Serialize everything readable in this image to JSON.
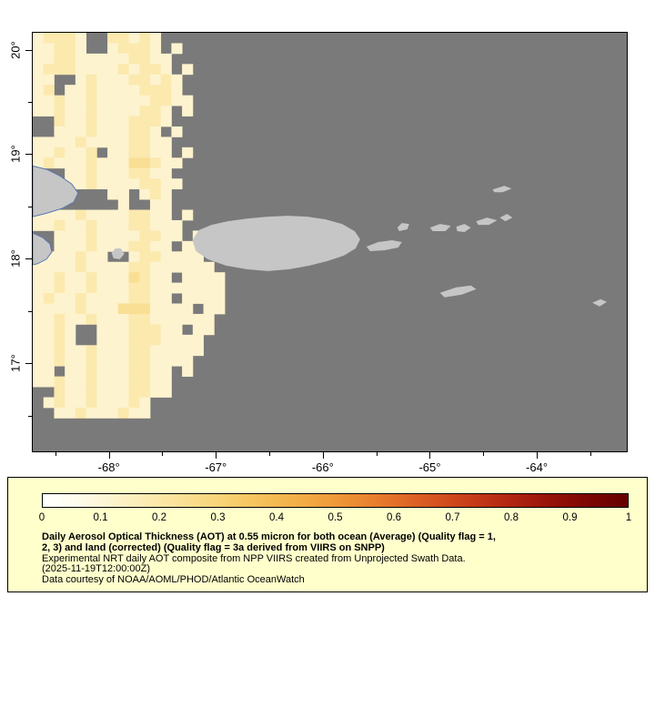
{
  "figure": {
    "bg_color": "#ffffff"
  },
  "map": {
    "bg_color": "#7a7a7a",
    "land_color": "#c6c6c6",
    "coast_accent": "#5b79b2",
    "border_color": "#000000"
  },
  "chart_data": {
    "type": "heatmap",
    "x_axis": {
      "ticks": [
        "-68°",
        "-67°",
        "-66°",
        "-65°",
        "-64°"
      ],
      "tick_values": [
        -68,
        -67,
        -66,
        -65,
        -64
      ],
      "minor_tick_values": [
        -68.5,
        -67.5,
        -66.5,
        -65.5,
        -64.5,
        -63.5
      ],
      "range": [
        -68.72,
        -63.15
      ]
    },
    "y_axis": {
      "ticks": [
        "20°",
        "19°",
        "18°",
        "17°"
      ],
      "tick_values": [
        20,
        19,
        18,
        17
      ],
      "minor_tick_values": [
        19.5,
        18.5,
        17.5,
        16.5
      ],
      "range": [
        16.15,
        20.17
      ]
    },
    "colorbar": {
      "ticks": [
        "0",
        "0.1",
        "0.2",
        "0.3",
        "0.4",
        "0.5",
        "0.6",
        "0.7",
        "0.8",
        "0.9",
        "1"
      ],
      "range": [
        0,
        1
      ],
      "gradient_stops": [
        [
          0,
          "#ffffff"
        ],
        [
          0.05,
          "#fffdf0"
        ],
        [
          0.1,
          "#fdf6d7"
        ],
        [
          0.15,
          "#fcefbf"
        ],
        [
          0.2,
          "#fbe7a7"
        ],
        [
          0.25,
          "#f9de8f"
        ],
        [
          0.3,
          "#f8d478"
        ],
        [
          0.35,
          "#f6c763"
        ],
        [
          0.4,
          "#f4b951"
        ],
        [
          0.45,
          "#f2aa44"
        ],
        [
          0.5,
          "#ef9939"
        ],
        [
          0.55,
          "#ea8530"
        ],
        [
          0.6,
          "#e37029"
        ],
        [
          0.65,
          "#da5b23"
        ],
        [
          0.7,
          "#cf481d"
        ],
        [
          0.75,
          "#c13617"
        ],
        [
          0.8,
          "#b12511"
        ],
        [
          0.85,
          "#9e170b"
        ],
        [
          0.9,
          "#890c05"
        ],
        [
          0.95,
          "#750402"
        ],
        [
          1,
          "#650000"
        ]
      ]
    },
    "aot_grid": {
      "cell_size_deg": 0.1,
      "value_map": {
        "1": 0.02,
        "2": 0.06,
        "3": 0.1,
        "4": 0.15
      },
      "color_map": {
        "1": "#fefbe8",
        "2": "#fdf3cf",
        "3": "#fbe9ae",
        "4": "#f9df94"
      },
      "no_data": ".",
      "rows": [
        "23332..33232.......",
        "22332..23332.2.....",
        "2233222223322......",
        "2333222232332.2....",
        "22..2322233232.....",
        "23.22322223332.....",
        "223223222223322....",
        "2232232222332.2....",
        "..32232223332......",
        "..2223222332.2.....",
        "2222322223322......",
        "223223.223322.2....",
        "23222322244322.....",
        "...2232223322......",
        "...22322223322.....",
        ".......22.232......",
        "........2..22......",
        "2222322223322.2....",
        "22322322233222.....",
        "..222322223322.2...",
        "..22232223322.22...",
        "2222322..2332222...",
        "22223222233222222..",
        "2232232224322.2222.",
        "223223222332222222.",
        "2322322223322.2222.",
        "222232224442222.22.",
        "22322322233222222..",
        "2232..22233322.22..",
        "2232..2223332222...",
        "2232232223322222...",
        "223223222332222....",
        "22.2232223322.2....",
        "2232232223322......",
        "..32232223322......",
        ".2322322232........",
        "..223222322........"
      ]
    },
    "land_polygons": {
      "hispaniola_northeast": [
        [
          0,
          147
        ],
        [
          16,
          151
        ],
        [
          30,
          158
        ],
        [
          43,
          167
        ],
        [
          50,
          177
        ],
        [
          45,
          187
        ],
        [
          32,
          194
        ],
        [
          16,
          199
        ],
        [
          0,
          203
        ]
      ],
      "hispaniola_southeast": [
        [
          0,
          221
        ],
        [
          11,
          226
        ],
        [
          19,
          233
        ],
        [
          21,
          242
        ],
        [
          15,
          250
        ],
        [
          5,
          255
        ],
        [
          0,
          256
        ]
      ],
      "mona_island": [
        [
          87,
          243
        ],
        [
          91,
          238
        ],
        [
          97,
          238
        ],
        [
          101,
          244
        ],
        [
          96,
          250
        ],
        [
          89,
          249
        ]
      ],
      "puerto_rico": [
        [
          176,
          229
        ],
        [
          183,
          218
        ],
        [
          197,
          212
        ],
        [
          215,
          208
        ],
        [
          237,
          205
        ],
        [
          259,
          203
        ],
        [
          281,
          202
        ],
        [
          303,
          203
        ],
        [
          323,
          206
        ],
        [
          341,
          211
        ],
        [
          355,
          219
        ],
        [
          361,
          228
        ],
        [
          356,
          238
        ],
        [
          343,
          246
        ],
        [
          325,
          252
        ],
        [
          305,
          257
        ],
        [
          283,
          261
        ],
        [
          259,
          263
        ],
        [
          236,
          261
        ],
        [
          213,
          257
        ],
        [
          193,
          250
        ],
        [
          180,
          241
        ]
      ],
      "vieques": [
        [
          368,
          236
        ],
        [
          381,
          231
        ],
        [
          396,
          229
        ],
        [
          407,
          231
        ],
        [
          403,
          237
        ],
        [
          388,
          240
        ],
        [
          372,
          241
        ]
      ],
      "culebra": [
        [
          402,
          215
        ],
        [
          407,
          210
        ],
        [
          415,
          211
        ],
        [
          413,
          217
        ],
        [
          404,
          219
        ]
      ],
      "st_thomas": [
        [
          438,
          215
        ],
        [
          449,
          211
        ],
        [
          461,
          213
        ],
        [
          455,
          219
        ],
        [
          441,
          219
        ]
      ],
      "st_john": [
        [
          467,
          214
        ],
        [
          476,
          211
        ],
        [
          483,
          215
        ],
        [
          476,
          220
        ],
        [
          468,
          219
        ]
      ],
      "tortola": [
        [
          489,
          208
        ],
        [
          501,
          204
        ],
        [
          512,
          207
        ],
        [
          503,
          212
        ],
        [
          491,
          212
        ]
      ],
      "virgin_gorda": [
        [
          515,
          204
        ],
        [
          523,
          200
        ],
        [
          529,
          204
        ],
        [
          521,
          208
        ]
      ],
      "anegada": [
        [
          507,
          173
        ],
        [
          520,
          169
        ],
        [
          528,
          172
        ],
        [
          518,
          176
        ],
        [
          509,
          176
        ]
      ],
      "st_croix": [
        [
          449,
          287
        ],
        [
          467,
          281
        ],
        [
          483,
          279
        ],
        [
          489,
          283
        ],
        [
          473,
          289
        ],
        [
          454,
          292
        ]
      ],
      "saba": [
        [
          617,
          298
        ],
        [
          626,
          294
        ],
        [
          633,
          297
        ],
        [
          625,
          302
        ]
      ]
    }
  },
  "legend": {
    "bg_color": "#ffffcc",
    "border_color": "#000000",
    "title_line1": "Daily Aerosol Optical Thickness (AOT) at 0.55 micron for both ocean (Average) (Quality flag = 1,",
    "title_line2": "2, 3) and land (corrected) (Quality flag = 3a derived from VIIRS on SNPP)",
    "subtitle": "Experimental NRT daily AOT composite from NPP VIIRS created from Unprojected Swath Data.",
    "timestamp": "(2025-11-19T12:00:00Z)",
    "credit": "Data courtesy of NOAA/AOML/PHOD/Atlantic OceanWatch"
  }
}
